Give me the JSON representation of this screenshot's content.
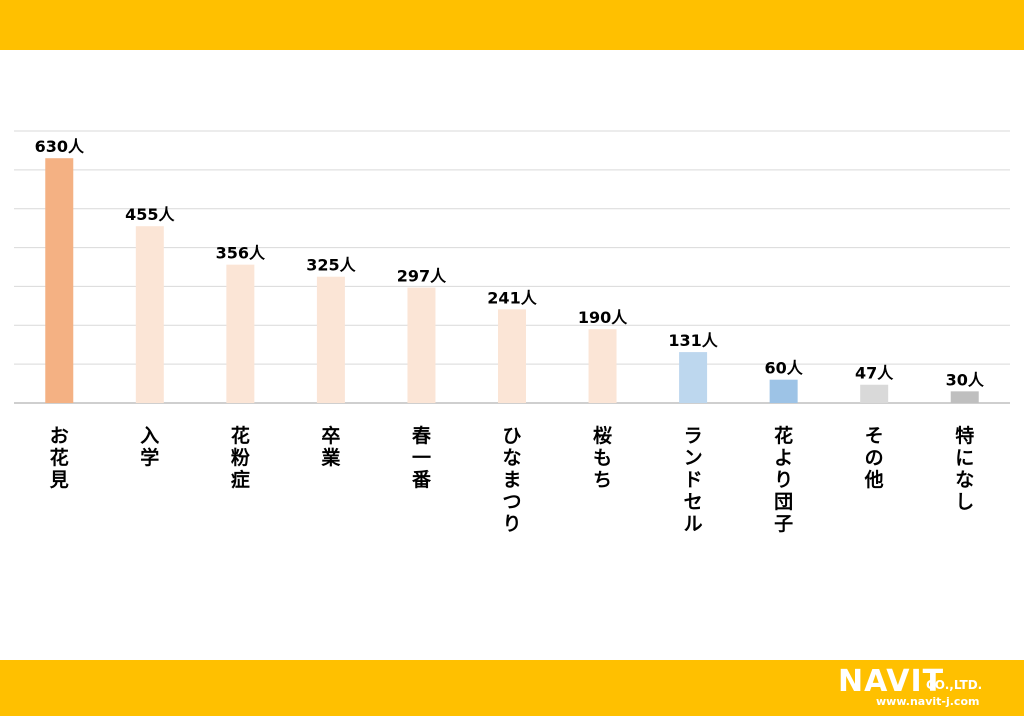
{
  "colors": {
    "band": "#FFC000",
    "gridline": "#D9D9D9",
    "axis": "#BFBFBF",
    "orange": "#F4B183",
    "peach": "#FBE5D6",
    "light_blue": "#BDD7EE",
    "blue": "#9DC3E6",
    "light_gray": "#D9D9D9",
    "gray": "#BFBFBF",
    "label_text": "#000000"
  },
  "chart_data": {
    "type": "bar",
    "categories": [
      "お花見",
      "入学",
      "花粉症",
      "卒業",
      "春一番",
      "ひなまつり",
      "桜もち",
      "ランドセル",
      "花より団子",
      "その他",
      "特になし"
    ],
    "values": [
      630,
      455,
      356,
      325,
      297,
      241,
      190,
      131,
      60,
      47,
      30
    ],
    "data_labels": [
      "630人",
      "455人",
      "356人",
      "325人",
      "297人",
      "241人",
      "190人",
      "131人",
      "60人",
      "47人",
      "30人"
    ],
    "bar_colors": [
      "orange",
      "peach",
      "peach",
      "peach",
      "peach",
      "peach",
      "peach",
      "light_blue",
      "blue",
      "light_gray",
      "gray"
    ],
    "ylim": [
      0,
      700
    ],
    "y_grid_step": 100,
    "grid": true,
    "orientation": "vertical",
    "category_label_direction": "vertical"
  },
  "logo": {
    "name": "NAVIT",
    "suffix": "CO.,LTD.",
    "url": "www.navit-j.com"
  }
}
